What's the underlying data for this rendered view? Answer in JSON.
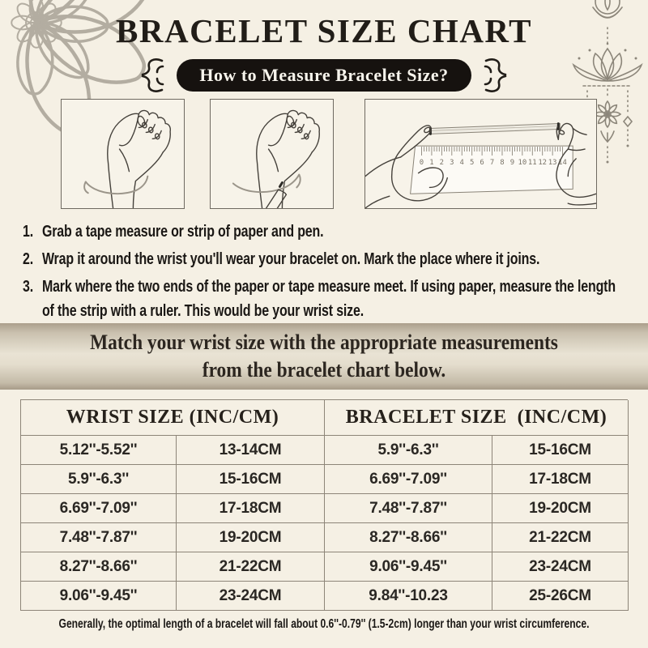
{
  "header": {
    "title": "BRACELET SIZE CHART",
    "badge": "How to Measure Bracelet Size?"
  },
  "instructions": {
    "items": [
      {
        "num": "1.",
        "text": "Grab a tape measure or strip of paper and pen."
      },
      {
        "num": "2.",
        "text": "Wrap it around the wrist you'll wear your bracelet on. Mark the place where it joins."
      },
      {
        "num": "3.",
        "text": "Mark where the two ends of the paper or tape measure meet. If using paper, measure the length of the strip with a ruler. This would be your wrist size."
      }
    ]
  },
  "banner": {
    "line1": "Match your wrist size with the appropriate measurements",
    "line2": "from the bracelet chart below."
  },
  "table": {
    "headers": [
      "WRIST SIZE (INC/CM)",
      "BRACELET SIZE  (INC/CM)"
    ],
    "rows": [
      [
        "5.12''-5.52''",
        "13-14CM",
        "5.9''-6.3''",
        "15-16CM"
      ],
      [
        "5.9''-6.3''",
        "15-16CM",
        "6.69''-7.09''",
        "17-18CM"
      ],
      [
        "6.69''-7.09''",
        "17-18CM",
        "7.48''-7.87''",
        "19-20CM"
      ],
      [
        "7.48''-7.87''",
        "19-20CM",
        "8.27''-8.66''",
        "21-22CM"
      ],
      [
        "8.27''-8.66''",
        "21-22CM",
        "9.06''-9.45''",
        "23-24CM"
      ],
      [
        "9.06''-9.45''",
        "23-24CM",
        "9.84''-10.23",
        "25-26CM"
      ]
    ]
  },
  "footer": {
    "note": "Generally, the optimal length of a bracelet will fall about 0.6''-0.79'' (1.5-2cm) longer than your wrist circumference."
  },
  "illustrations": {
    "ruler_numbers": [
      "0",
      "1",
      "2",
      "3",
      "4",
      "5",
      "6",
      "7",
      "8",
      "9",
      "10",
      "11",
      "12",
      "13",
      "14"
    ]
  },
  "colors": {
    "background": "#f5f0e4",
    "badge_bg": "#16120f",
    "banner_mid": "#e9e3d4",
    "table_border": "#8d8578",
    "decor_gray": "#8c867a",
    "mandala_gray": "#b3ada1"
  }
}
